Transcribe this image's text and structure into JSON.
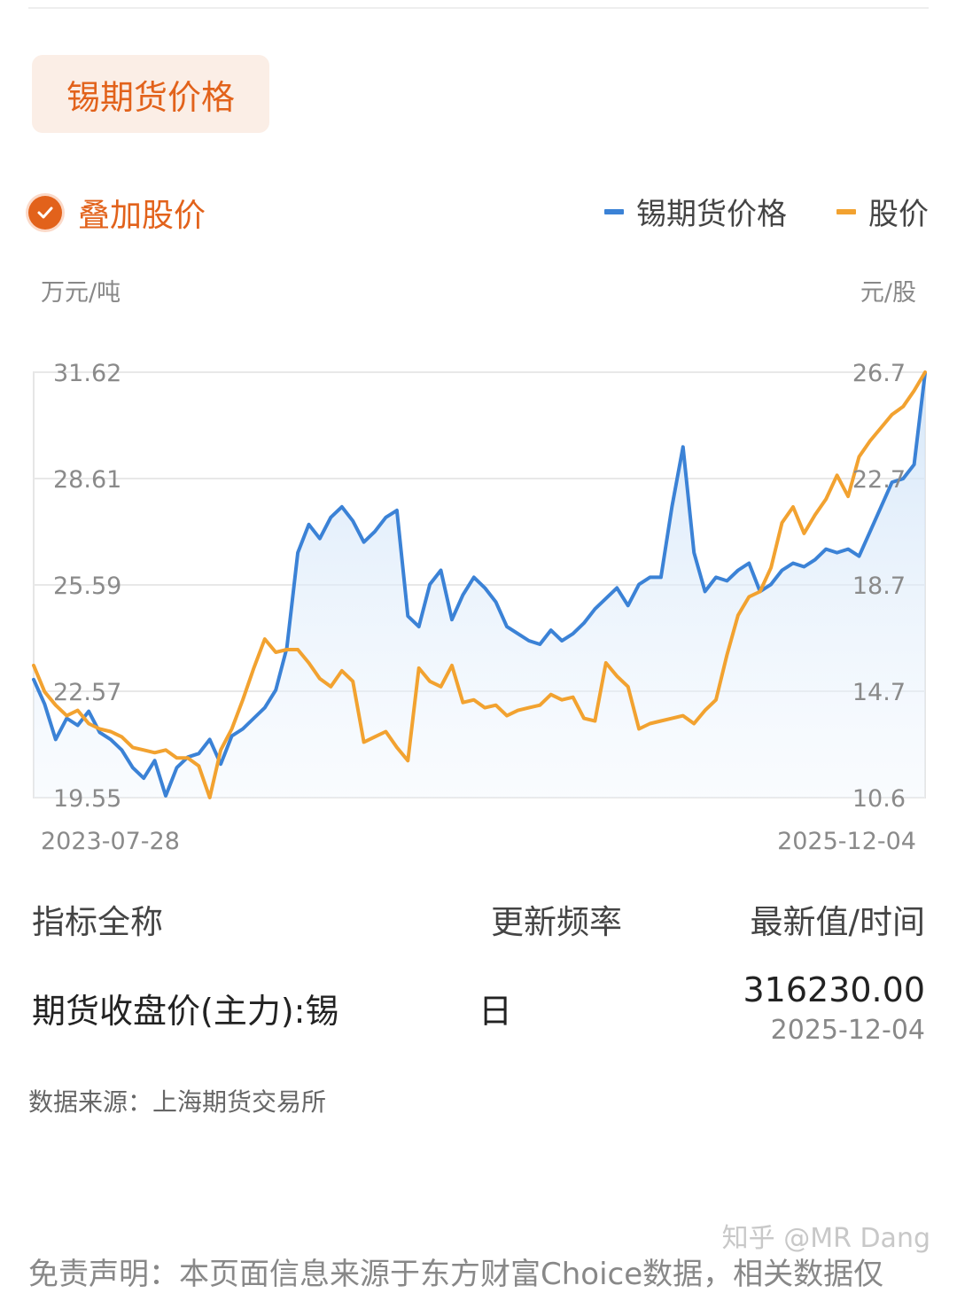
{
  "header": {
    "title": "锡期货价格"
  },
  "overlay": {
    "label": "叠加股价",
    "checked": true
  },
  "legend": [
    {
      "label": "锡期货价格",
      "color": "#3b82d6"
    },
    {
      "label": "股价",
      "color": "#f2a230"
    }
  ],
  "chart_data": {
    "type": "line",
    "y_left": {
      "unit": "万元/吨",
      "ticks": [
        "31.62",
        "28.61",
        "25.59",
        "22.57",
        "19.55"
      ],
      "range": [
        19.55,
        31.62
      ]
    },
    "y_right": {
      "unit": "元/股",
      "ticks": [
        "26.7",
        "22.7",
        "18.7",
        "14.7",
        "10.6"
      ],
      "range": [
        10.6,
        26.7
      ]
    },
    "x": {
      "start": "2023-07-28",
      "end": "2025-12-04"
    },
    "grid": true,
    "legend_position": "top-right",
    "series": [
      {
        "name": "锡期货价格",
        "axis": "left",
        "color": "#3b82d6",
        "area_fill": true,
        "values": [
          22.9,
          22.2,
          21.2,
          21.8,
          21.6,
          22.0,
          21.4,
          21.2,
          20.9,
          20.4,
          20.1,
          20.6,
          19.6,
          20.4,
          20.7,
          20.8,
          21.2,
          20.5,
          21.3,
          21.5,
          21.8,
          22.1,
          22.6,
          23.8,
          26.5,
          27.3,
          26.9,
          27.5,
          27.8,
          27.4,
          26.8,
          27.1,
          27.5,
          27.7,
          24.7,
          24.4,
          25.6,
          26.0,
          24.6,
          25.3,
          25.8,
          25.5,
          25.1,
          24.4,
          24.2,
          24.0,
          23.9,
          24.3,
          24.0,
          24.2,
          24.5,
          24.9,
          25.2,
          25.5,
          25.0,
          25.6,
          25.8,
          25.8,
          27.8,
          29.5,
          26.5,
          25.4,
          25.8,
          25.7,
          26.0,
          26.2,
          25.4,
          25.6,
          26.0,
          26.2,
          26.1,
          26.3,
          26.6,
          26.5,
          26.6,
          26.4,
          27.1,
          27.8,
          28.5,
          28.6,
          29.0,
          31.6
        ]
      },
      {
        "name": "股价",
        "axis": "right",
        "color": "#f2a230",
        "area_fill": false,
        "values": [
          15.6,
          14.6,
          14.1,
          13.7,
          13.9,
          13.4,
          13.2,
          13.1,
          12.9,
          12.5,
          12.4,
          12.3,
          12.4,
          12.1,
          12.1,
          11.8,
          10.6,
          12.4,
          13.2,
          14.3,
          15.5,
          16.6,
          16.1,
          16.2,
          16.2,
          15.7,
          15.1,
          14.8,
          15.4,
          15.0,
          12.7,
          12.9,
          13.1,
          12.5,
          12.0,
          15.5,
          15.0,
          14.8,
          15.6,
          14.2,
          14.3,
          14.0,
          14.1,
          13.7,
          13.9,
          14.0,
          14.1,
          14.5,
          14.3,
          14.4,
          13.6,
          13.5,
          15.7,
          15.2,
          14.8,
          13.2,
          13.4,
          13.5,
          13.6,
          13.7,
          13.4,
          13.9,
          14.3,
          16.0,
          17.5,
          18.2,
          18.4,
          19.3,
          21.0,
          21.6,
          20.6,
          21.3,
          21.9,
          22.8,
          22.0,
          23.5,
          24.1,
          24.6,
          25.1,
          25.4,
          26.0,
          26.7
        ]
      }
    ]
  },
  "table": {
    "headers": {
      "name": "指标全称",
      "freq": "更新频率",
      "latest": "最新值/时间"
    },
    "rows": [
      {
        "name": "期货收盘价(主力):锡",
        "freq": "日",
        "value": "316230.00",
        "date": "2025-12-04"
      }
    ]
  },
  "footer": {
    "source": "数据来源：上海期货交易所",
    "watermark": "知乎 @MR Dang",
    "disclaimer": "免责声明：本页面信息来源于东方财富Choice数据，相关数据仅"
  }
}
